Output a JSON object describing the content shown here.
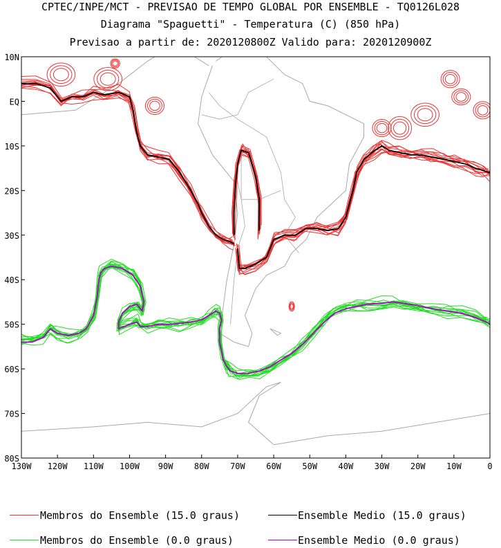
{
  "header": {
    "line1": "CPTEC/INPE/MCT - PREVISAO DE TEMPO GLOBAL POR ENSEMBLE - TQ0126L028",
    "line2": "Diagrama \"Spaguetti\" - Temperatura (C) (850 hPa)",
    "line3": "Previsao a partir de: 2020120800Z  Valido para: 2020120900Z"
  },
  "chart_data": {
    "type": "line",
    "xlim": [
      -130,
      0
    ],
    "ylim": [
      -80,
      10
    ],
    "x_ticks": [
      -130,
      -120,
      -110,
      -100,
      -90,
      -80,
      -70,
      -60,
      -50,
      -40,
      -30,
      -20,
      -10,
      0
    ],
    "x_tick_labels": [
      "130W",
      "120W",
      "110W",
      "100W",
      "90W",
      "80W",
      "70W",
      "60W",
      "50W",
      "40W",
      "30W",
      "20W",
      "10W",
      "0"
    ],
    "y_ticks": [
      10,
      0,
      -10,
      -20,
      -30,
      -40,
      -50,
      -60,
      -70,
      -80
    ],
    "y_tick_labels": [
      "10N",
      "EQ",
      "10S",
      "20S",
      "30S",
      "40S",
      "50S",
      "60S",
      "70S",
      "80S"
    ],
    "colors": {
      "members_15": "#ee3333",
      "mean_15": "#000000",
      "members_0": "#22dd22",
      "mean_0": "#aa00cc",
      "coast": "#a8a8a8"
    },
    "series": [
      {
        "name": "Ensemble Medio (15.0 graus)",
        "x": [
          -130,
          -126,
          -122,
          -119,
          -116,
          -113,
          -110,
          -107,
          -103,
          -100,
          -99,
          -98,
          -97,
          -95,
          -92,
          -89,
          -86,
          -83,
          -81,
          -80,
          -78,
          -76,
          -74,
          -72,
          -71
        ],
        "y": [
          4,
          4,
          3,
          0,
          1,
          1,
          2,
          1.5,
          2,
          1,
          -2,
          -7,
          -10,
          -12,
          -12.5,
          -13,
          -16,
          -20,
          -23,
          -25,
          -28,
          -30,
          -31,
          -31.5,
          -32
        ]
      },
      {
        "name": "Ensemble Medio (15.0 graus)",
        "x": [
          -71,
          -71,
          -70.5,
          -70,
          -69,
          -67,
          -65,
          -64,
          -64
        ],
        "y": [
          -30,
          -25,
          -18,
          -14,
          -11,
          -11.5,
          -17,
          -22,
          -29
        ]
      },
      {
        "name": "Ensemble Medio (15.0 graus)",
        "x": [
          -70,
          -69.5,
          -68,
          -65,
          -62,
          -60,
          -57,
          -54,
          -51,
          -48,
          -45,
          -42,
          -40,
          -38,
          -37,
          -35,
          -32,
          -30,
          -28,
          -25,
          -22,
          -19,
          -16,
          -13,
          -10,
          -7,
          -4,
          -2,
          0
        ],
        "y": [
          -33,
          -37.5,
          -37.5,
          -36.5,
          -35,
          -31,
          -30,
          -30,
          -28.5,
          -28.5,
          -29,
          -28.5,
          -26,
          -20,
          -16,
          -13,
          -11,
          -10,
          -11,
          -11.5,
          -12,
          -12,
          -12.5,
          -13,
          -13.5,
          -14,
          -15,
          -15.5,
          -16
        ]
      },
      {
        "name": "Ensemble Medio (0.0 graus)",
        "x": [
          -130,
          -127,
          -124,
          -122,
          -120,
          -117,
          -114,
          -112,
          -110,
          -109,
          -108.5,
          -108,
          -107,
          -105,
          -102,
          -99,
          -97,
          -96,
          -96.5,
          -98,
          -100,
          -102,
          -103,
          -103,
          -100,
          -98,
          -97,
          -95,
          -92,
          -89,
          -86,
          -83,
          -80,
          -78,
          -76,
          -75,
          -74.5,
          -75,
          -75,
          -74,
          -73,
          -72,
          -70,
          -67,
          -64,
          -61,
          -58,
          -55,
          -52,
          -49,
          -46,
          -43,
          -40,
          -37,
          -34,
          -30,
          -27,
          -24,
          -20,
          -16,
          -12,
          -8,
          -4,
          -1,
          0
        ],
        "y": [
          -54,
          -54,
          -53,
          -51,
          -52,
          -52.5,
          -52,
          -51,
          -48,
          -44,
          -40,
          -38.5,
          -37.5,
          -37,
          -37.5,
          -39,
          -41.5,
          -45,
          -47,
          -45.5,
          -46,
          -47.5,
          -49.5,
          -51,
          -50,
          -49.5,
          -50.5,
          -50.5,
          -50,
          -50,
          -49.8,
          -49.5,
          -49,
          -48,
          -47,
          -47.5,
          -49,
          -51,
          -54,
          -58,
          -59.5,
          -60.5,
          -61,
          -61,
          -60.5,
          -59.5,
          -58,
          -56.5,
          -54.5,
          -52,
          -49.5,
          -47.5,
          -46.5,
          -46,
          -45.5,
          -45.3,
          -45,
          -45.3,
          -45.8,
          -46.5,
          -47,
          -47.5,
          -48.5,
          -49.5,
          -50
        ]
      }
    ]
  },
  "legend": {
    "members_15": "Membros do Ensemble (15.0 graus)",
    "mean_15": "Ensemble Medio (15.0 graus)",
    "members_0": "Membros do Ensemble (0.0 graus)",
    "mean_0": "Ensemble Medio (0.0 graus)"
  }
}
